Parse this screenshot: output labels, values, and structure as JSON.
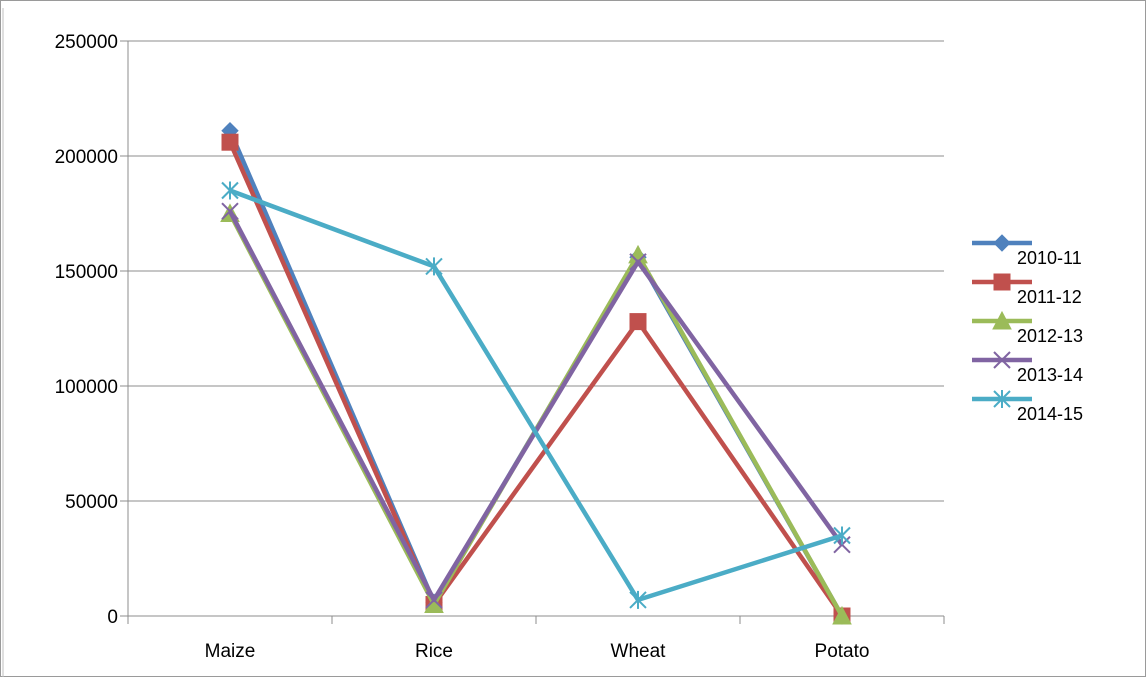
{
  "chart_data": {
    "type": "line",
    "title": "",
    "xlabel": "",
    "ylabel": "",
    "categories": [
      "Maize",
      "Rice",
      "Wheat",
      "Potato"
    ],
    "ylim": [
      0,
      250000
    ],
    "yticks": [
      "0",
      "50000",
      "100000",
      "150000",
      "200000",
      "250000"
    ],
    "grid": true,
    "legend_position": "right",
    "series": [
      {
        "name": "2010-11",
        "color": "#4F81BD",
        "marker": "diamond",
        "values": [
          211000,
          6000,
          156000,
          0
        ]
      },
      {
        "name": "2011-12",
        "color": "#C0504D",
        "marker": "square",
        "values": [
          206000,
          5000,
          128000,
          0
        ]
      },
      {
        "name": "2012-13",
        "color": "#9BBB59",
        "marker": "triangle",
        "values": [
          175000,
          5000,
          157000,
          0
        ]
      },
      {
        "name": "2013-14",
        "color": "#8064A2",
        "marker": "x",
        "values": [
          176000,
          7000,
          154000,
          31000
        ]
      },
      {
        "name": "2014-15",
        "color": "#4BACC6",
        "marker": "star",
        "values": [
          185000,
          152000,
          7000,
          35000
        ]
      }
    ]
  }
}
